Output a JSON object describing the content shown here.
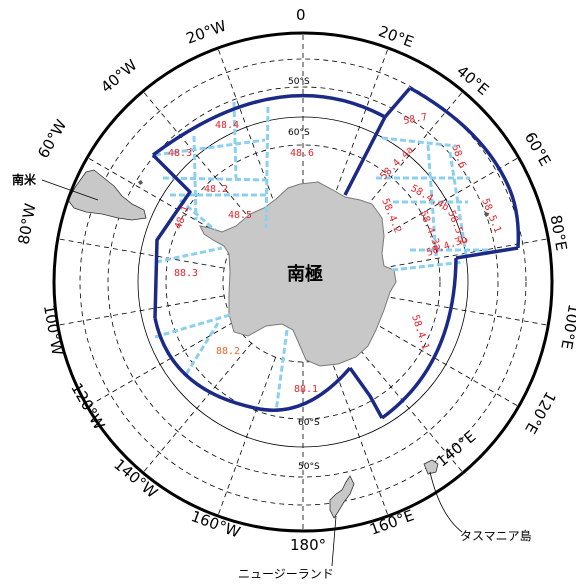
{
  "map": {
    "longitude_labels": [
      "0",
      "20°E",
      "40°E",
      "60°E",
      "80°E",
      "100°E",
      "120°E",
      "140°E",
      "160°E",
      "180°",
      "160°W",
      "140°W",
      "120°W",
      "100°W",
      "80°W",
      "60°W",
      "40°W",
      "20°W"
    ],
    "latitude_labels": {
      "top_50": "50°S",
      "top_60": "60°S",
      "bottom_60": "60°S",
      "bottom_50": "50°S"
    },
    "place_labels": {
      "pole": "南極",
      "south_america": "南米",
      "tasmania": "タスマニア島",
      "new_zealand": "ニュージーランド"
    },
    "areas": [
      "48.4",
      "48.3",
      "48.6",
      "48.2",
      "48.1",
      "48.5",
      "88.3",
      "88.2",
      "88.1",
      "58.7",
      "58.6",
      "58.4.4a",
      "58.4.4b",
      "58.5.1",
      "58.5.2",
      "58.4.2",
      "58.4.3a",
      "58.4.3b",
      "58.4.1"
    ],
    "colors": {
      "boundary": "#1b2a86",
      "subarea": "#8cd0ef",
      "land": "#c8c8c8",
      "area_text": "#e8242b",
      "area_text_alt": "#e8672b"
    }
  }
}
